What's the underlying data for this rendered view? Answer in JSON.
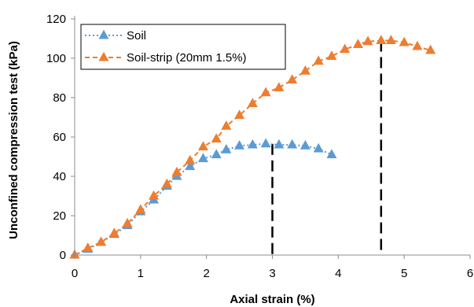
{
  "chart_data": {
    "type": "line",
    "xlabel": "Axial strain (%)",
    "ylabel": "Unconfined compression test (kPa)",
    "xlim": [
      0,
      6
    ],
    "ylim": [
      0,
      120
    ],
    "x_ticks": [
      0,
      1,
      2,
      3,
      4,
      5,
      6
    ],
    "y_ticks": [
      0,
      20,
      40,
      60,
      80,
      100,
      120
    ],
    "grid": false,
    "legend_position": "top-left",
    "series": [
      {
        "name": "Soil",
        "color": "#5B9BD5",
        "line_style": "dotted",
        "marker": "triangle",
        "x": [
          0.0,
          0.2,
          0.4,
          0.6,
          0.8,
          1.0,
          1.2,
          1.4,
          1.55,
          1.75,
          1.95,
          2.15,
          2.3,
          2.5,
          2.7,
          2.9,
          3.1,
          3.3,
          3.5,
          3.7,
          3.9
        ],
        "y": [
          0,
          3,
          6.5,
          10.5,
          15,
          22,
          28,
          35,
          40,
          45,
          49,
          51,
          53.5,
          55.5,
          56,
          56.5,
          56,
          56,
          55.5,
          54,
          51
        ]
      },
      {
        "name": "Soil-strip (20mm 1.5%)",
        "color": "#ED7D31",
        "line_style": "dashed",
        "marker": "triangle",
        "x": [
          0.0,
          0.2,
          0.4,
          0.6,
          0.8,
          1.0,
          1.2,
          1.4,
          1.55,
          1.75,
          1.95,
          2.15,
          2.3,
          2.5,
          2.7,
          2.9,
          3.1,
          3.3,
          3.5,
          3.7,
          3.9,
          4.1,
          4.3,
          4.45,
          4.65,
          4.8,
          5.0,
          5.2,
          5.4
        ],
        "y": [
          0,
          3.5,
          6.5,
          11,
          16,
          23,
          30,
          36,
          42,
          48,
          55,
          59,
          65.5,
          71,
          77,
          82.5,
          85,
          89,
          93.5,
          98.5,
          101,
          104.5,
          107,
          108.5,
          109,
          109,
          108,
          106,
          104
        ]
      }
    ],
    "annotations": [
      {
        "kind": "vertical-dashed-line",
        "x": 3.0,
        "y_top": 56.5
      },
      {
        "kind": "vertical-dashed-line",
        "x": 4.65,
        "y_top": 109
      }
    ]
  }
}
